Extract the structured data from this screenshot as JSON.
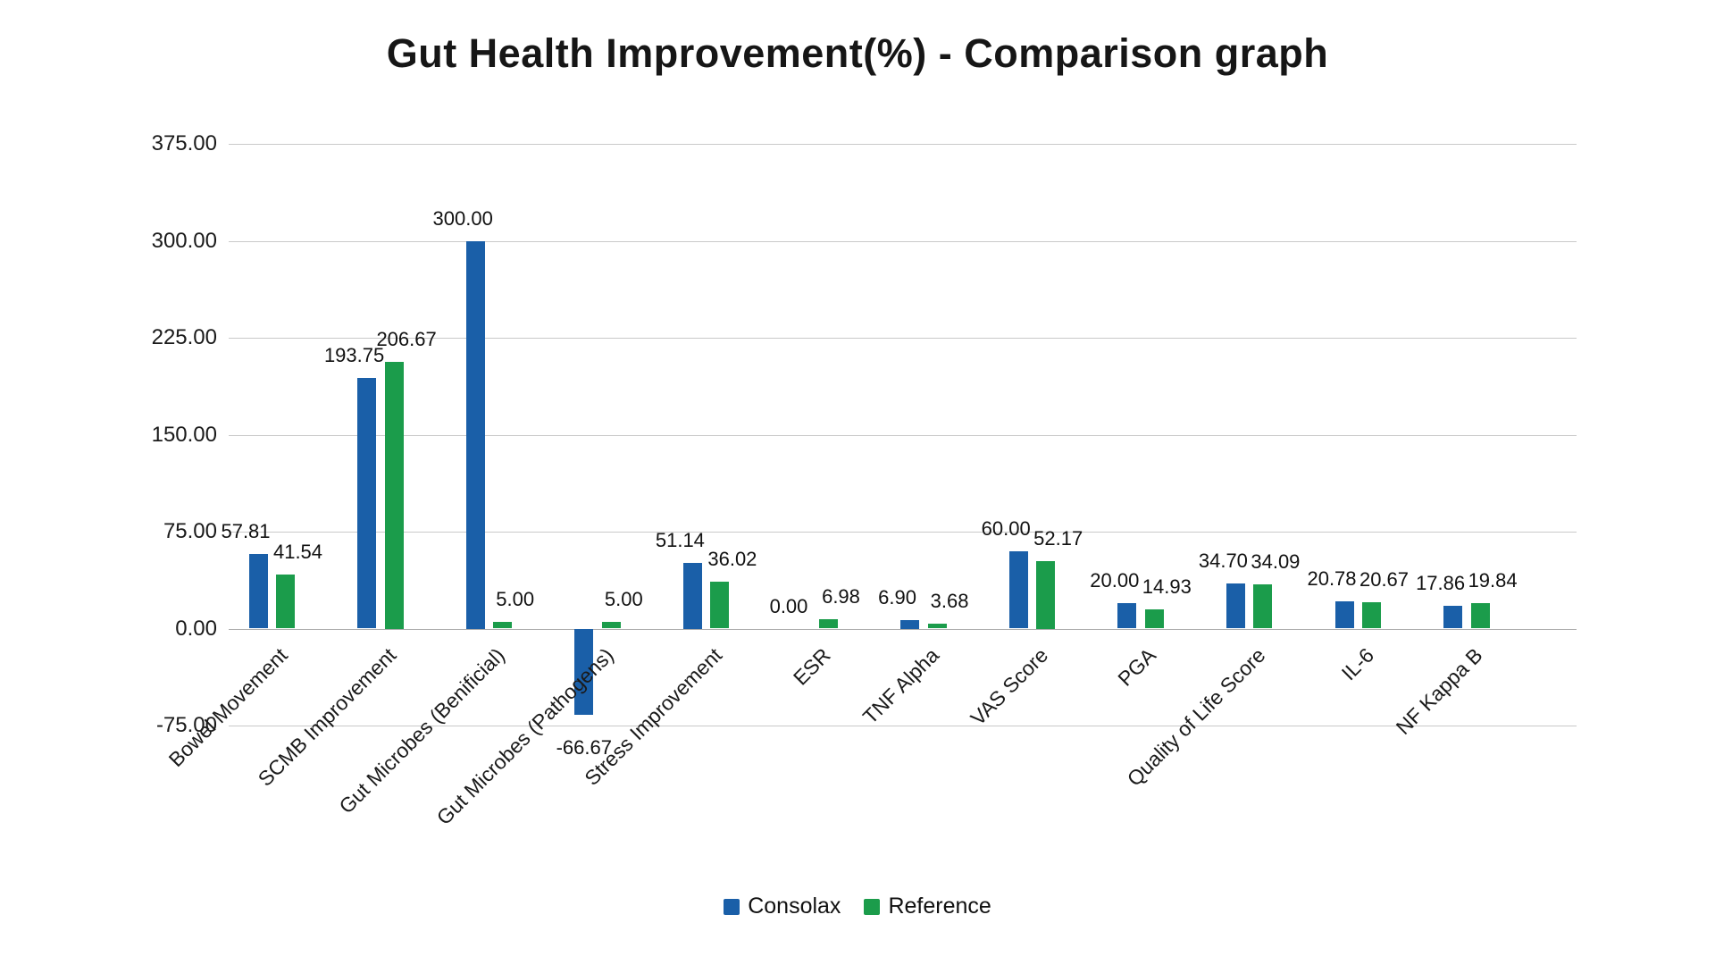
{
  "chart_data": {
    "type": "bar",
    "title": "Gut Health Improvement(%) - Comparison graph",
    "categories": [
      "Bowel Movement",
      "SCMB Improvement",
      "Gut Microbes (Benificial)",
      "Gut Microbes (Pathogens)",
      "Stress Improvement",
      "ESR",
      "TNF Alpha",
      "VAS Score",
      "PGA",
      "Quality of Life Score",
      "IL-6",
      "NF Kappa B"
    ],
    "series": [
      {
        "name": "Consolax",
        "color": "#1A5FA8",
        "values": [
          57.81,
          193.75,
          300.0,
          -66.67,
          51.14,
          0.0,
          6.9,
          60.0,
          20.0,
          34.7,
          20.78,
          17.86
        ]
      },
      {
        "name": "Reference",
        "color": "#1B9C4B",
        "values": [
          41.54,
          206.67,
          5.0,
          5.0,
          36.02,
          6.98,
          3.68,
          52.17,
          14.93,
          34.09,
          20.67,
          19.84
        ]
      }
    ],
    "yticks": [
      375,
      300,
      225,
      150,
      75,
      0,
      -75
    ],
    "ylim": [
      -75,
      375
    ],
    "value_label_decimals": 2,
    "grid": "horizontal",
    "legend_position": "bottom",
    "background": "#ffffff",
    "gridline_color": "#c9c9c9",
    "text_color": "#161616"
  }
}
